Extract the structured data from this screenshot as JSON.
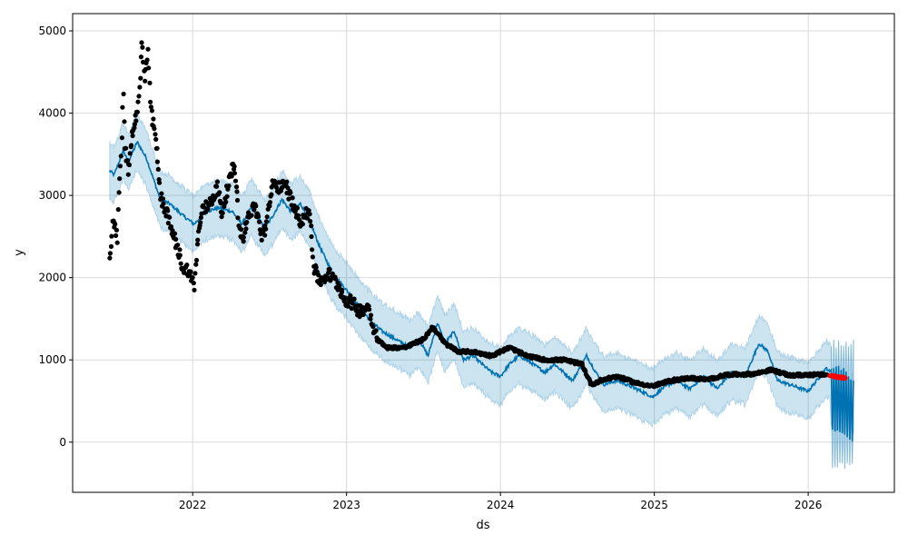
{
  "chart_data": {
    "type": "scatter",
    "title": "",
    "xlabel": "ds",
    "ylabel": "y",
    "xlim": [
      2021.22,
      2026.56
    ],
    "ylim": [
      -610,
      5210
    ],
    "grid": true,
    "x_ticks": [
      {
        "v": 2022,
        "label": "2022"
      },
      {
        "v": 2023,
        "label": "2023"
      },
      {
        "v": 2024,
        "label": "2024"
      },
      {
        "v": 2025,
        "label": "2025"
      },
      {
        "v": 2026,
        "label": "2026"
      }
    ],
    "y_ticks": [
      {
        "v": 0,
        "label": "0"
      },
      {
        "v": 1000,
        "label": "1000"
      },
      {
        "v": 2000,
        "label": "2000"
      },
      {
        "v": 3000,
        "label": "3000"
      },
      {
        "v": 4000,
        "label": "4000"
      },
      {
        "v": 5000,
        "label": "5000"
      }
    ],
    "colors": {
      "actual": "#000000",
      "yhat": "#0072B2",
      "band": "#0072B2",
      "recent": "#ff0000"
    },
    "actual": [
      [
        2021.46,
        2200
      ],
      [
        2021.48,
        2700
      ],
      [
        2021.51,
        2500
      ],
      [
        2021.52,
        3000
      ],
      [
        2021.54,
        3700
      ],
      [
        2021.55,
        4300
      ],
      [
        2021.56,
        3600
      ],
      [
        2021.58,
        3300
      ],
      [
        2021.61,
        3800
      ],
      [
        2021.64,
        4000
      ],
      [
        2021.66,
        4400
      ],
      [
        2021.67,
        4900
      ],
      [
        2021.69,
        4400
      ],
      [
        2021.71,
        4700
      ],
      [
        2021.73,
        4000
      ],
      [
        2021.76,
        3700
      ],
      [
        2021.79,
        3000
      ],
      [
        2021.83,
        2800
      ],
      [
        2021.86,
        2600
      ],
      [
        2021.91,
        2300
      ],
      [
        2021.94,
        2100
      ],
      [
        2021.97,
        2100
      ],
      [
        2022.01,
        1900
      ],
      [
        2022.03,
        2400
      ],
      [
        2022.06,
        2800
      ],
      [
        2022.11,
        2900
      ],
      [
        2022.16,
        3100
      ],
      [
        2022.19,
        2800
      ],
      [
        2022.23,
        3100
      ],
      [
        2022.27,
        3400
      ],
      [
        2022.3,
        2700
      ],
      [
        2022.32,
        2450
      ],
      [
        2022.37,
        2800
      ],
      [
        2022.41,
        2850
      ],
      [
        2022.45,
        2500
      ],
      [
        2022.48,
        2650
      ],
      [
        2022.52,
        3150
      ],
      [
        2022.57,
        3100
      ],
      [
        2022.61,
        3100
      ],
      [
        2022.65,
        2900
      ],
      [
        2022.7,
        2700
      ],
      [
        2022.76,
        2800
      ],
      [
        2022.79,
        2100
      ],
      [
        2022.83,
        1950
      ],
      [
        2022.88,
        2050
      ],
      [
        2022.95,
        1900
      ],
      [
        2022.98,
        1750
      ],
      [
        2023.03,
        1700
      ],
      [
        2023.08,
        1600
      ],
      [
        2023.14,
        1650
      ],
      [
        2023.2,
        1250
      ],
      [
        2023.26,
        1150
      ],
      [
        2023.38,
        1150
      ],
      [
        2023.5,
        1250
      ],
      [
        2023.56,
        1400
      ],
      [
        2023.64,
        1200
      ],
      [
        2023.73,
        1100
      ],
      [
        2023.82,
        1100
      ],
      [
        2023.94,
        1050
      ],
      [
        2024.06,
        1150
      ],
      [
        2024.17,
        1050
      ],
      [
        2024.29,
        1000
      ],
      [
        2024.41,
        1000
      ],
      [
        2024.53,
        950
      ],
      [
        2024.59,
        700
      ],
      [
        2024.65,
        750
      ],
      [
        2024.76,
        800
      ],
      [
        2024.88,
        720
      ],
      [
        2024.99,
        680
      ],
      [
        2025.11,
        750
      ],
      [
        2025.23,
        780
      ],
      [
        2025.35,
        760
      ],
      [
        2025.47,
        820
      ],
      [
        2025.65,
        830
      ],
      [
        2025.76,
        880
      ],
      [
        2025.88,
        810
      ],
      [
        2026.0,
        820
      ],
      [
        2026.12,
        820
      ]
    ],
    "recent_actual": [
      [
        2026.14,
        810
      ],
      [
        2026.17,
        800
      ],
      [
        2026.2,
        790
      ],
      [
        2026.22,
        785
      ],
      [
        2026.24,
        780
      ]
    ],
    "yhat": [
      [
        2021.46,
        3300
      ],
      [
        2021.49,
        3250
      ],
      [
        2021.55,
        3550
      ],
      [
        2021.58,
        3400
      ],
      [
        2021.64,
        3650
      ],
      [
        2021.7,
        3450
      ],
      [
        2021.79,
        2950
      ],
      [
        2021.85,
        2900
      ],
      [
        2021.94,
        2750
      ],
      [
        2022.01,
        2650
      ],
      [
        2022.08,
        2800
      ],
      [
        2022.17,
        2850
      ],
      [
        2022.26,
        2800
      ],
      [
        2022.32,
        2650
      ],
      [
        2022.38,
        2850
      ],
      [
        2022.47,
        2600
      ],
      [
        2022.52,
        2750
      ],
      [
        2022.58,
        2950
      ],
      [
        2022.64,
        2800
      ],
      [
        2022.7,
        2900
      ],
      [
        2022.76,
        2700
      ],
      [
        2022.82,
        2400
      ],
      [
        2022.91,
        2050
      ],
      [
        2023.0,
        1850
      ],
      [
        2023.08,
        1650
      ],
      [
        2023.17,
        1450
      ],
      [
        2023.23,
        1350
      ],
      [
        2023.32,
        1250
      ],
      [
        2023.41,
        1150
      ],
      [
        2023.47,
        1250
      ],
      [
        2023.53,
        1050
      ],
      [
        2023.59,
        1450
      ],
      [
        2023.64,
        1200
      ],
      [
        2023.7,
        1350
      ],
      [
        2023.76,
        1000
      ],
      [
        2023.82,
        1050
      ],
      [
        2023.88,
        950
      ],
      [
        2023.94,
        850
      ],
      [
        2024.0,
        800
      ],
      [
        2024.06,
        950
      ],
      [
        2024.12,
        1050
      ],
      [
        2024.17,
        1000
      ],
      [
        2024.29,
        850
      ],
      [
        2024.35,
        950
      ],
      [
        2024.47,
        750
      ],
      [
        2024.56,
        1050
      ],
      [
        2024.62,
        850
      ],
      [
        2024.67,
        700
      ],
      [
        2024.76,
        750
      ],
      [
        2024.88,
        650
      ],
      [
        2024.99,
        550
      ],
      [
        2025.05,
        650
      ],
      [
        2025.14,
        750
      ],
      [
        2025.23,
        650
      ],
      [
        2025.32,
        800
      ],
      [
        2025.41,
        650
      ],
      [
        2025.5,
        850
      ],
      [
        2025.59,
        800
      ],
      [
        2025.68,
        1200
      ],
      [
        2025.74,
        1100
      ],
      [
        2025.8,
        750
      ],
      [
        2025.88,
        700
      ],
      [
        2026.0,
        620
      ],
      [
        2026.12,
        900
      ],
      [
        2026.14,
        850
      ]
    ],
    "forecast": [
      [
        2026.15,
        880
      ],
      [
        2026.158,
        150
      ],
      [
        2026.166,
        900
      ],
      [
        2026.174,
        130
      ],
      [
        2026.182,
        920
      ],
      [
        2026.19,
        140
      ],
      [
        2026.198,
        930
      ],
      [
        2026.206,
        120
      ],
      [
        2026.214,
        880
      ],
      [
        2026.222,
        110
      ],
      [
        2026.23,
        900
      ],
      [
        2026.238,
        90
      ],
      [
        2026.246,
        860
      ],
      [
        2026.254,
        60
      ],
      [
        2026.262,
        800
      ],
      [
        2026.27,
        30
      ],
      [
        2026.278,
        760
      ],
      [
        2026.286,
        10
      ],
      [
        2026.294,
        750
      ]
    ],
    "band_halfwidth": 340
  }
}
